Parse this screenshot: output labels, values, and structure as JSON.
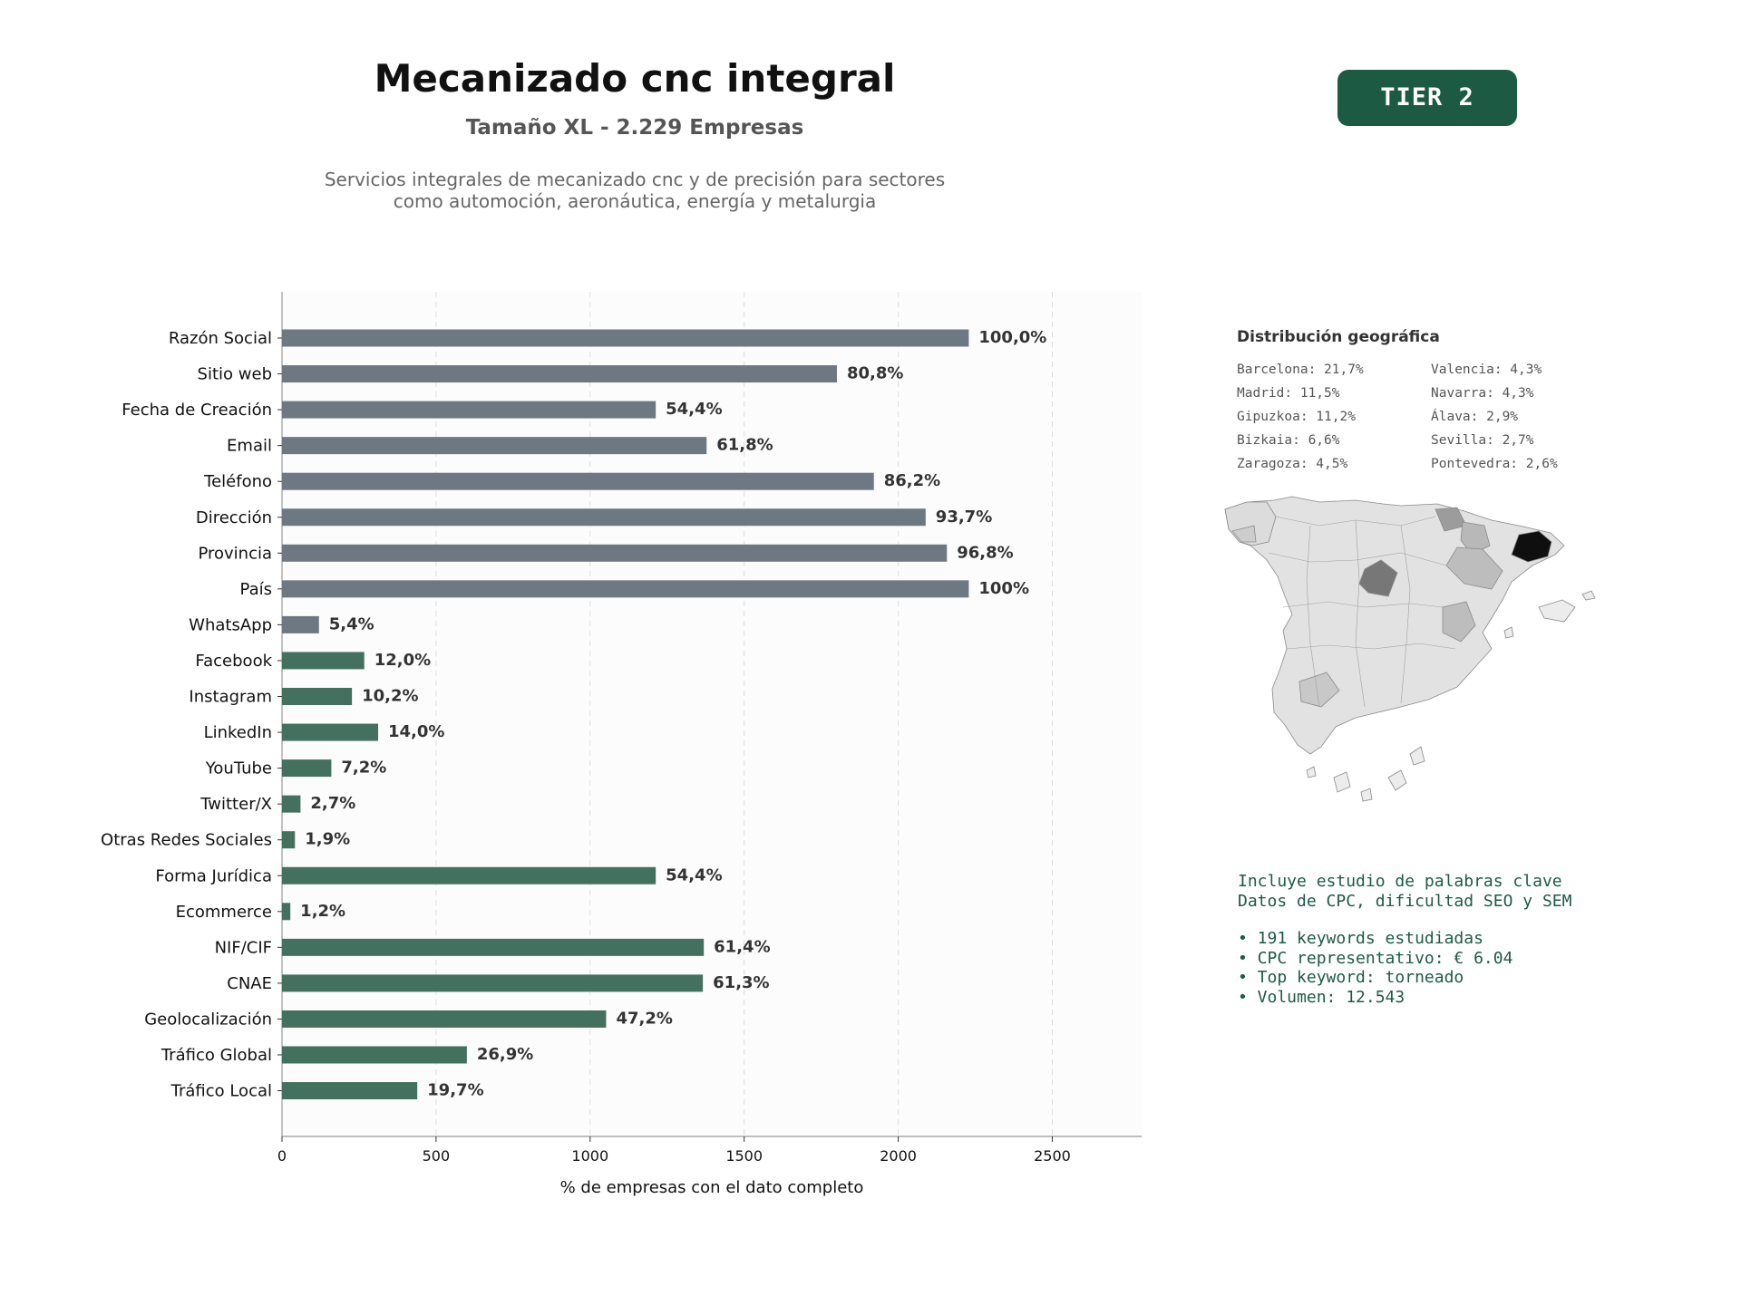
{
  "header": {
    "title": "Mecanizado cnc integral",
    "subtitle": "Tamaño XL - 2.229 Empresas",
    "description_line1": "Servicios integrales de mecanizado cnc y de precisión para sectores",
    "description_line2": "como automoción, aeronáutica, energía y metalurgia",
    "tier": "TIER 2"
  },
  "colors": {
    "gray_bar": "#6d7883",
    "green_bar": "#44715f",
    "accent": "#1d5a44"
  },
  "chart_data": {
    "type": "bar",
    "orientation": "horizontal",
    "xlabel": "% de empresas con el dato completo",
    "xlim": [
      0,
      2790
    ],
    "xticks": [
      0,
      500,
      1000,
      1500,
      2000,
      2500
    ],
    "grid": true,
    "categories": [
      "Razón Social",
      "Sitio web",
      "Fecha de Creación",
      "Email",
      "Teléfono",
      "Dirección",
      "Provincia",
      "País",
      "WhatsApp",
      "Facebook",
      "Instagram",
      "LinkedIn",
      "YouTube",
      "Twitter/X",
      "Otras Redes Sociales",
      "Forma Jurídica",
      "Ecommerce",
      "NIF/CIF",
      "CNAE",
      "Geolocalización",
      "Tráfico Global",
      "Tráfico Local"
    ],
    "values": [
      2229,
      1801,
      1213,
      1378,
      1921,
      2089,
      2158,
      2229,
      120,
      267,
      227,
      312,
      160,
      60,
      42,
      1213,
      27,
      1369,
      1366,
      1052,
      600,
      439
    ],
    "data_labels": [
      "100,0%",
      "80,8%",
      "54,4%",
      "61,8%",
      "86,2%",
      "93,7%",
      "96,8%",
      "100%",
      "5,4%",
      "12,0%",
      "10,2%",
      "14,0%",
      "7,2%",
      "2,7%",
      "1,9%",
      "54,4%",
      "1,2%",
      "61,4%",
      "61,3%",
      "47,2%",
      "26,9%",
      "19,7%"
    ],
    "bar_color_groups": [
      "gray",
      "gray",
      "gray",
      "gray",
      "gray",
      "gray",
      "gray",
      "gray",
      "gray",
      "green",
      "green",
      "green",
      "green",
      "green",
      "green",
      "green",
      "green",
      "green",
      "green",
      "green",
      "green",
      "green"
    ]
  },
  "geo": {
    "title": "Distribución geográfica",
    "items": [
      "Barcelona: 21,7%",
      "Madrid: 11,5%",
      "Gipuzkoa: 11,2%",
      "Bizkaia: 6,6%",
      "Zaragoza: 4,5%",
      "Valencia: 4,3%",
      "Navarra: 4,3%",
      "Álava: 2,9%",
      "Sevilla: 2,7%",
      "Pontevedra: 2,6%"
    ]
  },
  "keywords": {
    "line1": "Incluye estudio de palabras clave",
    "line2": "Datos de CPC, dificultad SEO y SEM",
    "bullets": [
      "• 191 keywords estudiadas",
      "• CPC representativo: € 6.04",
      "• Top keyword: torneado",
      "• Volumen: 12.543"
    ]
  }
}
